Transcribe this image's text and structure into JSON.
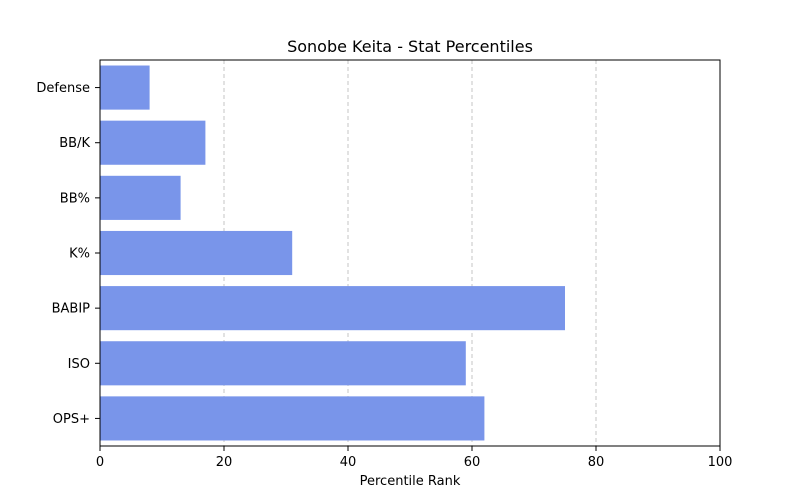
{
  "chart_data": {
    "type": "bar",
    "orientation": "horizontal",
    "title": "Sonobe Keita - Stat Percentiles",
    "xlabel": "Percentile Rank",
    "ylabel": "",
    "xlim": [
      0,
      100
    ],
    "xticks": [
      "0",
      "20",
      "40",
      "60",
      "80",
      "100"
    ],
    "grid": "x-dashed",
    "categories": [
      "Defense",
      "BB/K",
      "BB%",
      "K%",
      "BABIP",
      "ISO",
      "OPS+"
    ],
    "values": [
      8,
      17,
      13,
      31,
      75,
      59,
      62
    ],
    "bar_color": "#7995EA"
  }
}
